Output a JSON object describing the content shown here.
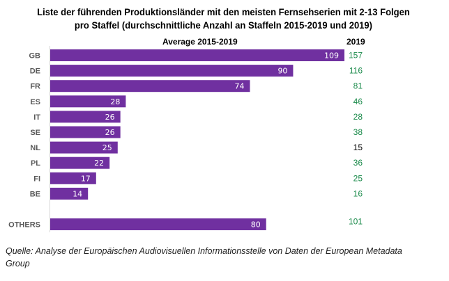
{
  "chart_data": {
    "type": "bar",
    "orientation": "horizontal",
    "title": "Liste der führenden Produktionsländer mit den meisten Fernsehserien mit 2-13 Folgen pro Staffel (durchschnittliche Anzahl an Staffeln 2015-2019 und 2019)",
    "title_lines": [
      "Liste der führenden Produktionsländer mit den meisten Fernsehserien mit 2-13 Folgen",
      "pro Staffel (durchschnittliche Anzahl an Staffeln 2015-2019 und 2019)"
    ],
    "categories": [
      "GB",
      "DE",
      "FR",
      "ES",
      "IT",
      "SE",
      "NL",
      "PL",
      "FI",
      "BE",
      "OTHERS"
    ],
    "series": [
      {
        "name": "Average 2015-2019",
        "values": [
          109,
          90,
          74,
          28,
          26,
          26,
          25,
          22,
          17,
          14,
          80
        ],
        "color": "#7030a0"
      },
      {
        "name": "2019",
        "values": [
          157,
          116,
          81,
          46,
          28,
          38,
          15,
          36,
          25,
          16,
          101
        ],
        "color": "#1a8a4a",
        "value_colors": [
          "#1a8a4a",
          "#1a8a4a",
          "#1a8a4a",
          "#1a8a4a",
          "#1a8a4a",
          "#1a8a4a",
          "#000000",
          "#1a8a4a",
          "#1a8a4a",
          "#1a8a4a",
          "#1a8a4a"
        ]
      }
    ],
    "column_headers": {
      "average": "Average 2015-2019",
      "year": "2019"
    },
    "xlim": [
      0,
      109
    ],
    "grid": false,
    "legend": "none",
    "source": "Quelle: Analyse der Europäischen Audiovisuellen Informationsstelle von Daten der European Metadata Group"
  }
}
